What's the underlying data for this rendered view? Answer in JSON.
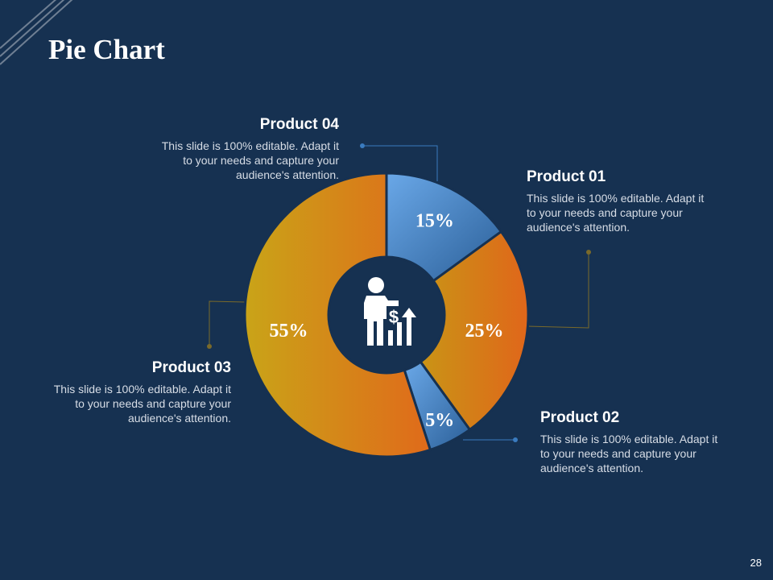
{
  "slide": {
    "title": "Pie Chart",
    "page_number": "28"
  },
  "colors": {
    "background": "#163151",
    "blue_slice": "#4d8bd0",
    "orange_slice": "#e07a18",
    "gold_slice": "#c9a018",
    "connector_blue": "#3a7bbf",
    "connector_gold": "#7a6a2a"
  },
  "products": [
    {
      "name": "Product 01",
      "text": "This slide is 100% editable. Adapt it to your needs and capture your audience's attention."
    },
    {
      "name": "Product 02",
      "text": "This slide is 100% editable. Adapt it to your needs and capture your audience's attention."
    },
    {
      "name": "Product 03",
      "text": "This slide is 100% editable. Adapt it to your needs and capture your audience's attention."
    },
    {
      "name": "Product 04",
      "text": "This slide is 100% editable. Adapt it to your needs and capture your audience's attention."
    }
  ],
  "center_icon": "businessman-dollar-growth-icon",
  "chart_data": {
    "type": "pie",
    "categories": [
      "Product 01",
      "Product 02",
      "Product 03",
      "Product 04"
    ],
    "values": [
      15,
      25,
      5,
      55
    ],
    "labels": [
      "15%",
      "25%",
      "5%",
      "55%"
    ],
    "slice_colors": [
      "blue",
      "orange",
      "blue",
      "gold-orange"
    ]
  }
}
